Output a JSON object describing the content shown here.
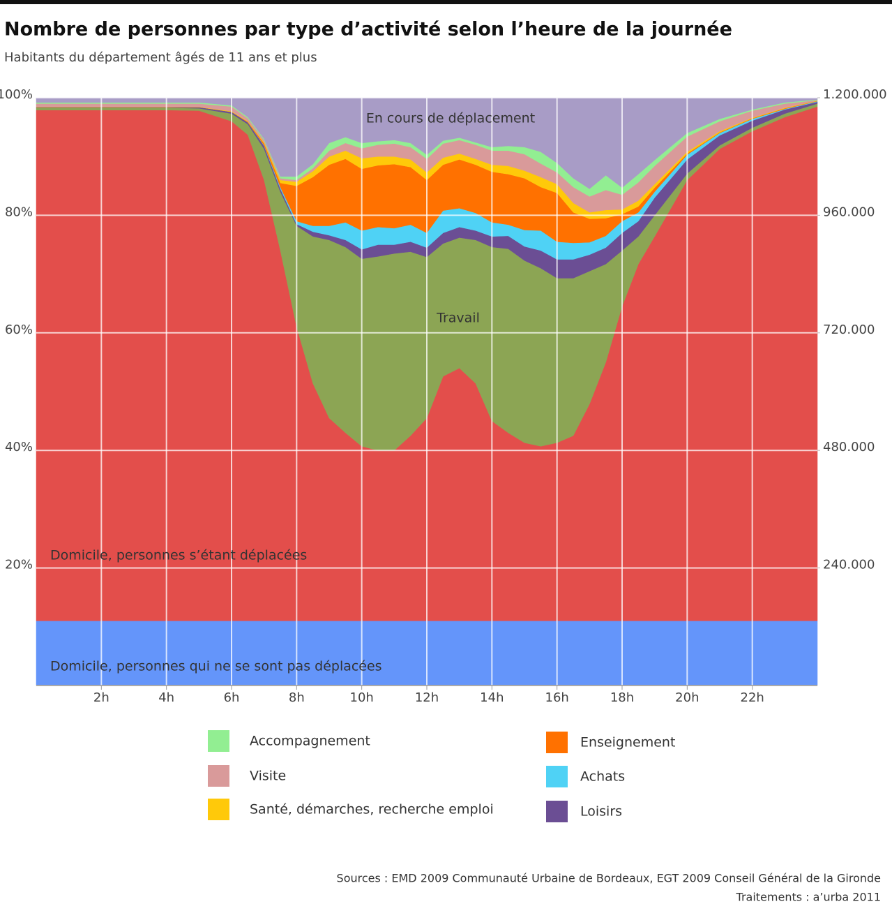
{
  "chart_data": {
    "type": "area",
    "stacked": true,
    "title": "Nombre de personnes par type d’activité selon l’heure de la journée",
    "subtitle": "Habitants du département âgés de 11 ans et plus",
    "source": "Sources : EMD 2009 Communauté Urbaine de Bordeaux, EGT 2009 Conseil Général de la Gironde",
    "credit": "Traitements : a’urba 2011",
    "x": [
      0,
      1,
      2,
      3,
      4,
      5,
      6,
      6.5,
      7,
      7.5,
      8,
      8.5,
      9,
      9.5,
      10,
      10.5,
      11,
      11.5,
      12,
      12.5,
      13,
      13.5,
      14,
      14.5,
      15,
      15.5,
      16,
      16.5,
      17,
      17.5,
      18,
      18.5,
      19,
      20,
      21,
      22,
      23,
      24
    ],
    "xlim": [
      0,
      24
    ],
    "xticks": [
      {
        "value": 2,
        "label": "2h"
      },
      {
        "value": 4,
        "label": "4h"
      },
      {
        "value": 6,
        "label": "6h"
      },
      {
        "value": 8,
        "label": "8h"
      },
      {
        "value": 10,
        "label": "10h"
      },
      {
        "value": 12,
        "label": "12h"
      },
      {
        "value": 14,
        "label": "14h"
      },
      {
        "value": 16,
        "label": "16h"
      },
      {
        "value": 18,
        "label": "18h"
      },
      {
        "value": 20,
        "label": "20h"
      },
      {
        "value": 22,
        "label": "22h"
      }
    ],
    "ylim": [
      0,
      100
    ],
    "yticks": [
      {
        "value": 20,
        "label": "20%"
      },
      {
        "value": 40,
        "label": "40%"
      },
      {
        "value": 60,
        "label": "60%"
      },
      {
        "value": 80,
        "label": "80%"
      },
      {
        "value": 100,
        "label": "100%"
      }
    ],
    "y2lim": [
      0,
      1200000
    ],
    "y2ticks": [
      {
        "value": 240000,
        "label": "240.000"
      },
      {
        "value": 480000,
        "label": "480.000"
      },
      {
        "value": 720000,
        "label": "720.000"
      },
      {
        "value": 960000,
        "label": "960.000"
      },
      {
        "value": 1200000,
        "label": "1.200.000"
      }
    ],
    "grid": true,
    "series": [
      {
        "name": "Domicile, personnes qui ne se sont pas déplacées",
        "color": "#6495fa",
        "values": [
          11,
          11,
          11,
          11,
          11,
          11,
          11,
          11,
          11,
          11,
          11,
          11,
          11,
          11,
          11,
          11,
          11,
          11,
          11,
          11,
          11,
          11,
          11,
          11,
          11,
          11,
          11,
          11,
          11,
          11,
          11,
          11,
          11,
          11,
          11,
          11,
          11,
          11
        ]
      },
      {
        "name": "Domicile, personnes s’étant déplacées",
        "color": "#e34e4b",
        "values": [
          86.9,
          86.9,
          86.9,
          86.9,
          86.9,
          86.8,
          85,
          82.7,
          75,
          63,
          50,
          40.4,
          34.5,
          32,
          29.7,
          29,
          29,
          31.5,
          34.5,
          41.6,
          43,
          40.4,
          34,
          32,
          30.3,
          29.7,
          30.3,
          31.5,
          36.9,
          44,
          53.5,
          60.7,
          65.4,
          75,
          80.3,
          83.3,
          85.7,
          87.5
        ]
      },
      {
        "name": "Travail",
        "color": "#8ca554",
        "values": [
          0.4,
          0.4,
          0.4,
          0.4,
          0.4,
          0.4,
          1.3,
          1.8,
          5.3,
          10,
          17.2,
          25,
          30.3,
          31.6,
          31.9,
          33,
          33.5,
          31.3,
          27.4,
          22.6,
          22.2,
          24.4,
          29.6,
          31.3,
          31,
          30.3,
          28,
          26.8,
          22.6,
          16.7,
          9.5,
          4.7,
          3.6,
          1.1,
          0.6,
          0.6,
          0.6,
          0.5
        ]
      },
      {
        "name": "Loisirs",
        "color": "#6b4e94",
        "values": [
          0.1,
          0.1,
          0.1,
          0.1,
          0.1,
          0.2,
          0.3,
          0.3,
          0.5,
          0.5,
          0.3,
          0.8,
          0.8,
          1.2,
          1.6,
          2,
          1.5,
          1.7,
          1.6,
          1.8,
          1.8,
          1.6,
          1.8,
          2.2,
          2.4,
          3,
          3.2,
          3.2,
          2.8,
          2.8,
          3,
          2.6,
          3,
          2.4,
          1.7,
          1.2,
          0.7,
          0.3
        ]
      },
      {
        "name": "Achats",
        "color": "#4fd2f5",
        "values": [
          0,
          0,
          0,
          0,
          0,
          0,
          0,
          0,
          0.1,
          0.3,
          0.5,
          1,
          1.6,
          3,
          3.2,
          3,
          2.8,
          2.9,
          2.5,
          3.8,
          3.2,
          3,
          2.4,
          1.9,
          2.8,
          3.4,
          3,
          2.8,
          2.1,
          2,
          2,
          1.5,
          1,
          0.8,
          0.4,
          0.3,
          0.1,
          0.1
        ]
      },
      {
        "name": "Enseignement",
        "color": "#ff7100",
        "values": [
          0,
          0,
          0,
          0,
          0,
          0,
          0,
          0.1,
          0.3,
          0.7,
          6,
          8.3,
          10.4,
          10.8,
          10.5,
          10.5,
          10.9,
          9.8,
          9,
          7.8,
          8.3,
          8.2,
          8.6,
          8.6,
          8.8,
          7.4,
          8.3,
          5.2,
          4,
          3,
          1.2,
          1,
          0.7,
          0.2,
          0.1,
          0.1,
          0.1,
          0.05
        ]
      },
      {
        "name": "Santé, démarches, recherche emploi",
        "color": "#ffc90a",
        "values": [
          0.05,
          0.05,
          0.05,
          0.05,
          0.05,
          0.05,
          0.1,
          0.1,
          0.2,
          0.5,
          0.7,
          1,
          1.4,
          1.4,
          1.8,
          1.5,
          1.3,
          1.3,
          1.3,
          1.2,
          1,
          1,
          1.2,
          1.4,
          1.3,
          1.7,
          1.5,
          1.6,
          1.1,
          1.4,
          0.8,
          1,
          0.6,
          0.3,
          0.2,
          0.1,
          0.1,
          0.05
        ]
      },
      {
        "name": "Visite",
        "color": "#d99a9a",
        "values": [
          0.55,
          0.55,
          0.55,
          0.55,
          0.55,
          0.55,
          0.8,
          0.5,
          0.4,
          0.3,
          0.3,
          0.5,
          1,
          1.3,
          1.7,
          2,
          2.2,
          2.1,
          2.3,
          2.4,
          2.3,
          2.4,
          2.4,
          2.6,
          2.8,
          2.3,
          2,
          2.7,
          2.7,
          3.4,
          2.5,
          3.1,
          3.1,
          2.6,
          1.7,
          1.2,
          0.7,
          0.1
        ]
      },
      {
        "name": "Accompagnement",
        "color": "#92ee92",
        "values": [
          0.2,
          0.2,
          0.2,
          0.2,
          0.2,
          0.2,
          0.2,
          0.2,
          0.2,
          0.3,
          0.6,
          0.7,
          1.3,
          1,
          0.9,
          0.6,
          0.6,
          0.7,
          0.7,
          0.5,
          0.4,
          0.4,
          0.6,
          0.8,
          1.2,
          2,
          1.6,
          1.5,
          1.3,
          2.5,
          1.2,
          1.4,
          1,
          0.6,
          0.4,
          0.2,
          0.2,
          0.1
        ]
      },
      {
        "name": "En cours de déplacement",
        "color": "#a89cc6",
        "values": [
          0.8,
          0.8,
          0.8,
          0.8,
          0.8,
          0.8,
          1.3,
          3.3,
          7,
          13.4,
          13.4,
          11.3,
          7.7,
          6.7,
          7.7,
          7.4,
          7.2,
          7.7,
          9.7,
          7.3,
          6.8,
          7.6,
          8.4,
          8.2,
          8.4,
          9.2,
          11.1,
          13.7,
          15.5,
          13.2,
          15.3,
          13,
          10.6,
          6,
          3.6,
          2,
          0.8,
          0.3
        ]
      }
    ]
  }
}
